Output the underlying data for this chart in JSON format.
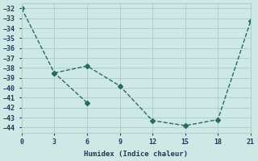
{
  "line1_x": [
    0,
    3,
    6
  ],
  "line1_y": [
    -32,
    -38.5,
    -41.5
  ],
  "line2_x": [
    3,
    6,
    9,
    12,
    15,
    18,
    21
  ],
  "line2_y": [
    -38.5,
    -37.8,
    -39.8,
    -43.3,
    -43.8,
    -43.2,
    -33.3
  ],
  "line_color": "#276b63",
  "bg_color": "#cde8e5",
  "grid_color": "#aecfcc",
  "xlabel": "Humidex (Indice chaleur)",
  "xlim": [
    0,
    21
  ],
  "ylim": [
    -44.5,
    -31.5
  ],
  "xticks": [
    0,
    3,
    6,
    9,
    12,
    15,
    18,
    21
  ],
  "yticks": [
    -32,
    -33,
    -34,
    -35,
    -36,
    -37,
    -38,
    -39,
    -40,
    -41,
    -42,
    -43,
    -44
  ],
  "font_color": "#1a3a5c"
}
